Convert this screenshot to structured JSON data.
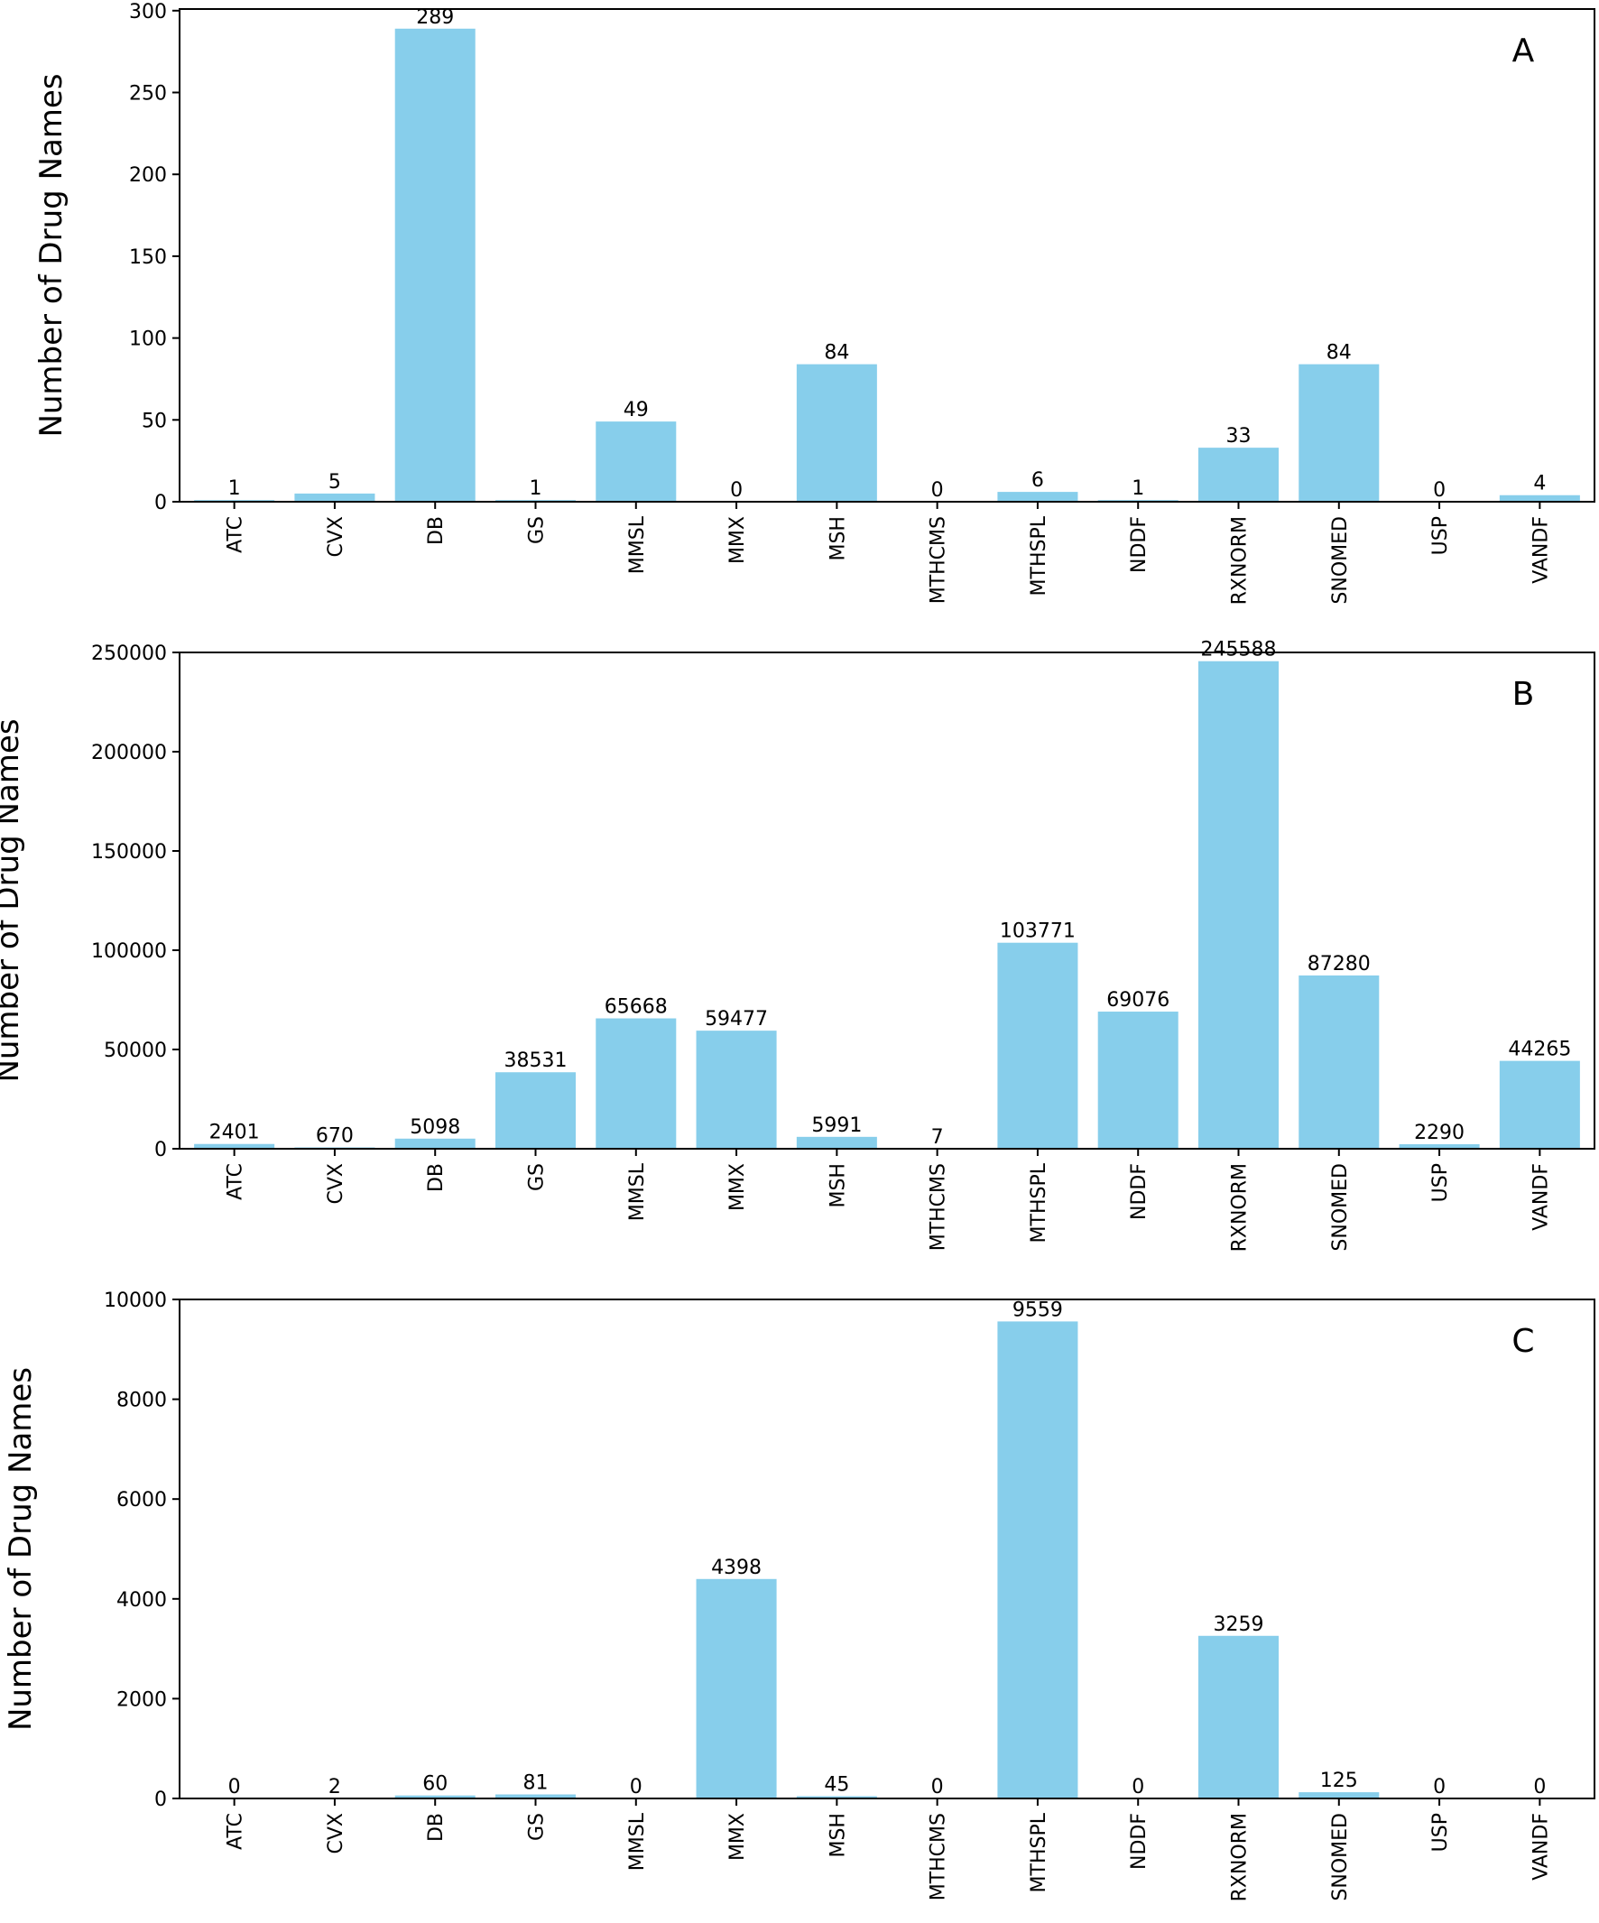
{
  "chart_data": [
    {
      "type": "bar",
      "panel_label": "A",
      "ylabel": "Number of Drug Names",
      "categories": [
        "ATC",
        "CVX",
        "DB",
        "GS",
        "MMSL",
        "MMX",
        "MSH",
        "MTHCMS",
        "MTHSPL",
        "NDDF",
        "RXNORM",
        "SNOMED",
        "USP",
        "VANDF"
      ],
      "values": [
        1,
        5,
        289,
        1,
        49,
        0,
        84,
        0,
        6,
        1,
        33,
        84,
        0,
        4
      ],
      "data_labels": [
        "1",
        "5",
        "289",
        "1",
        "49",
        "0",
        "84",
        "0",
        "6",
        "1",
        "33",
        "84",
        "0",
        "4"
      ],
      "yticks": [
        0,
        50,
        100,
        150,
        200,
        250,
        300
      ],
      "ytick_labels": [
        "0",
        "50",
        "100",
        "150",
        "200",
        "250",
        "300"
      ],
      "ylim": [
        0,
        301
      ],
      "bar_color": "#87CEEB",
      "grid": false
    },
    {
      "type": "bar",
      "panel_label": "B",
      "ylabel": "Number of Drug Names",
      "categories": [
        "ATC",
        "CVX",
        "DB",
        "GS",
        "MMSL",
        "MMX",
        "MSH",
        "MTHCMS",
        "MTHSPL",
        "NDDF",
        "RXNORM",
        "SNOMED",
        "USP",
        "VANDF"
      ],
      "values": [
        2401,
        670,
        5098,
        38531,
        65668,
        59477,
        5991,
        7,
        103771,
        69076,
        245588,
        87280,
        2290,
        44265
      ],
      "data_labels": [
        "2401",
        "670",
        "5098",
        "38531",
        "65668",
        "59477",
        "5991",
        "7",
        "103771",
        "69076",
        "245588",
        "87280",
        "2290",
        "44265"
      ],
      "yticks": [
        0,
        50000,
        100000,
        150000,
        200000,
        250000
      ],
      "ytick_labels": [
        "0",
        "50000",
        "100000",
        "150000",
        "200000",
        "250000"
      ],
      "ylim": [
        0,
        250000
      ],
      "bar_color": "#87CEEB",
      "grid": false
    },
    {
      "type": "bar",
      "panel_label": "C",
      "ylabel": "Number of Drug Names",
      "categories": [
        "ATC",
        "CVX",
        "DB",
        "GS",
        "MMSL",
        "MMX",
        "MSH",
        "MTHCMS",
        "MTHSPL",
        "NDDF",
        "RXNORM",
        "SNOMED",
        "USP",
        "VANDF"
      ],
      "values": [
        0,
        2,
        60,
        81,
        0,
        4398,
        45,
        0,
        9559,
        0,
        3259,
        125,
        0,
        0
      ],
      "data_labels": [
        "0",
        "2",
        "60",
        "81",
        "0",
        "4398",
        "45",
        "0",
        "9559",
        "0",
        "3259",
        "125",
        "0",
        "0"
      ],
      "yticks": [
        0,
        2000,
        4000,
        6000,
        8000,
        10000
      ],
      "ytick_labels": [
        "0",
        "2000",
        "4000",
        "6000",
        "8000",
        "10000"
      ],
      "ylim": [
        0,
        10000
      ],
      "bar_color": "#87CEEB",
      "grid": false
    }
  ]
}
